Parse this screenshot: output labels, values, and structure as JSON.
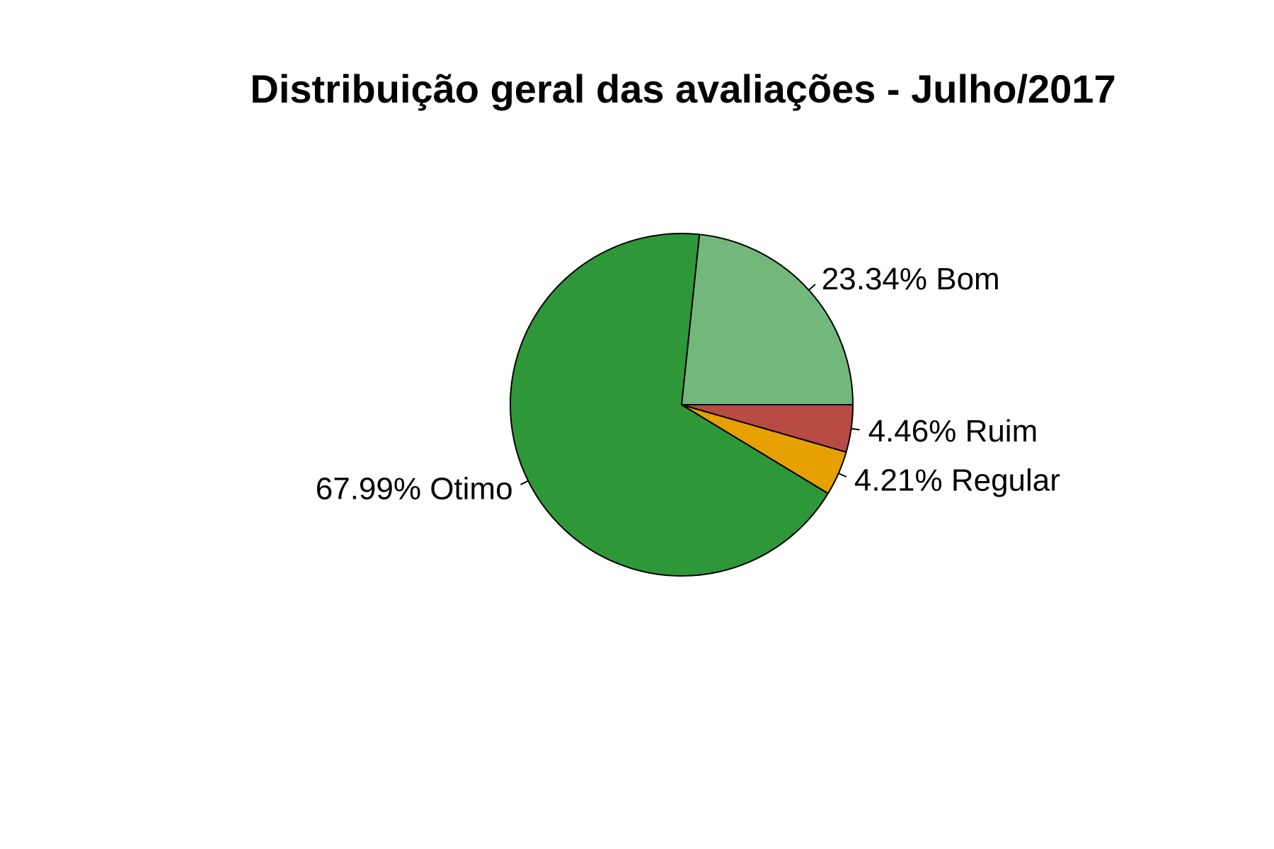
{
  "chart_data": {
    "type": "pie",
    "title": "Distribuição geral das avaliações - Julho/2017",
    "start_angle_deg": 0,
    "direction": "counterclockwise",
    "slices": [
      {
        "label": "23.34% Bom",
        "category": "Bom",
        "percent": 23.34,
        "color": "#72b87a"
      },
      {
        "label": "67.99% Otimo",
        "category": "Otimo",
        "percent": 67.99,
        "color": "#2e9838"
      },
      {
        "label": "4.21% Regular",
        "category": "Regular",
        "percent": 4.21,
        "color": "#e6a100"
      },
      {
        "label": "4.46% Ruim",
        "category": "Ruim",
        "percent": 4.46,
        "color": "#b84c44"
      }
    ]
  }
}
